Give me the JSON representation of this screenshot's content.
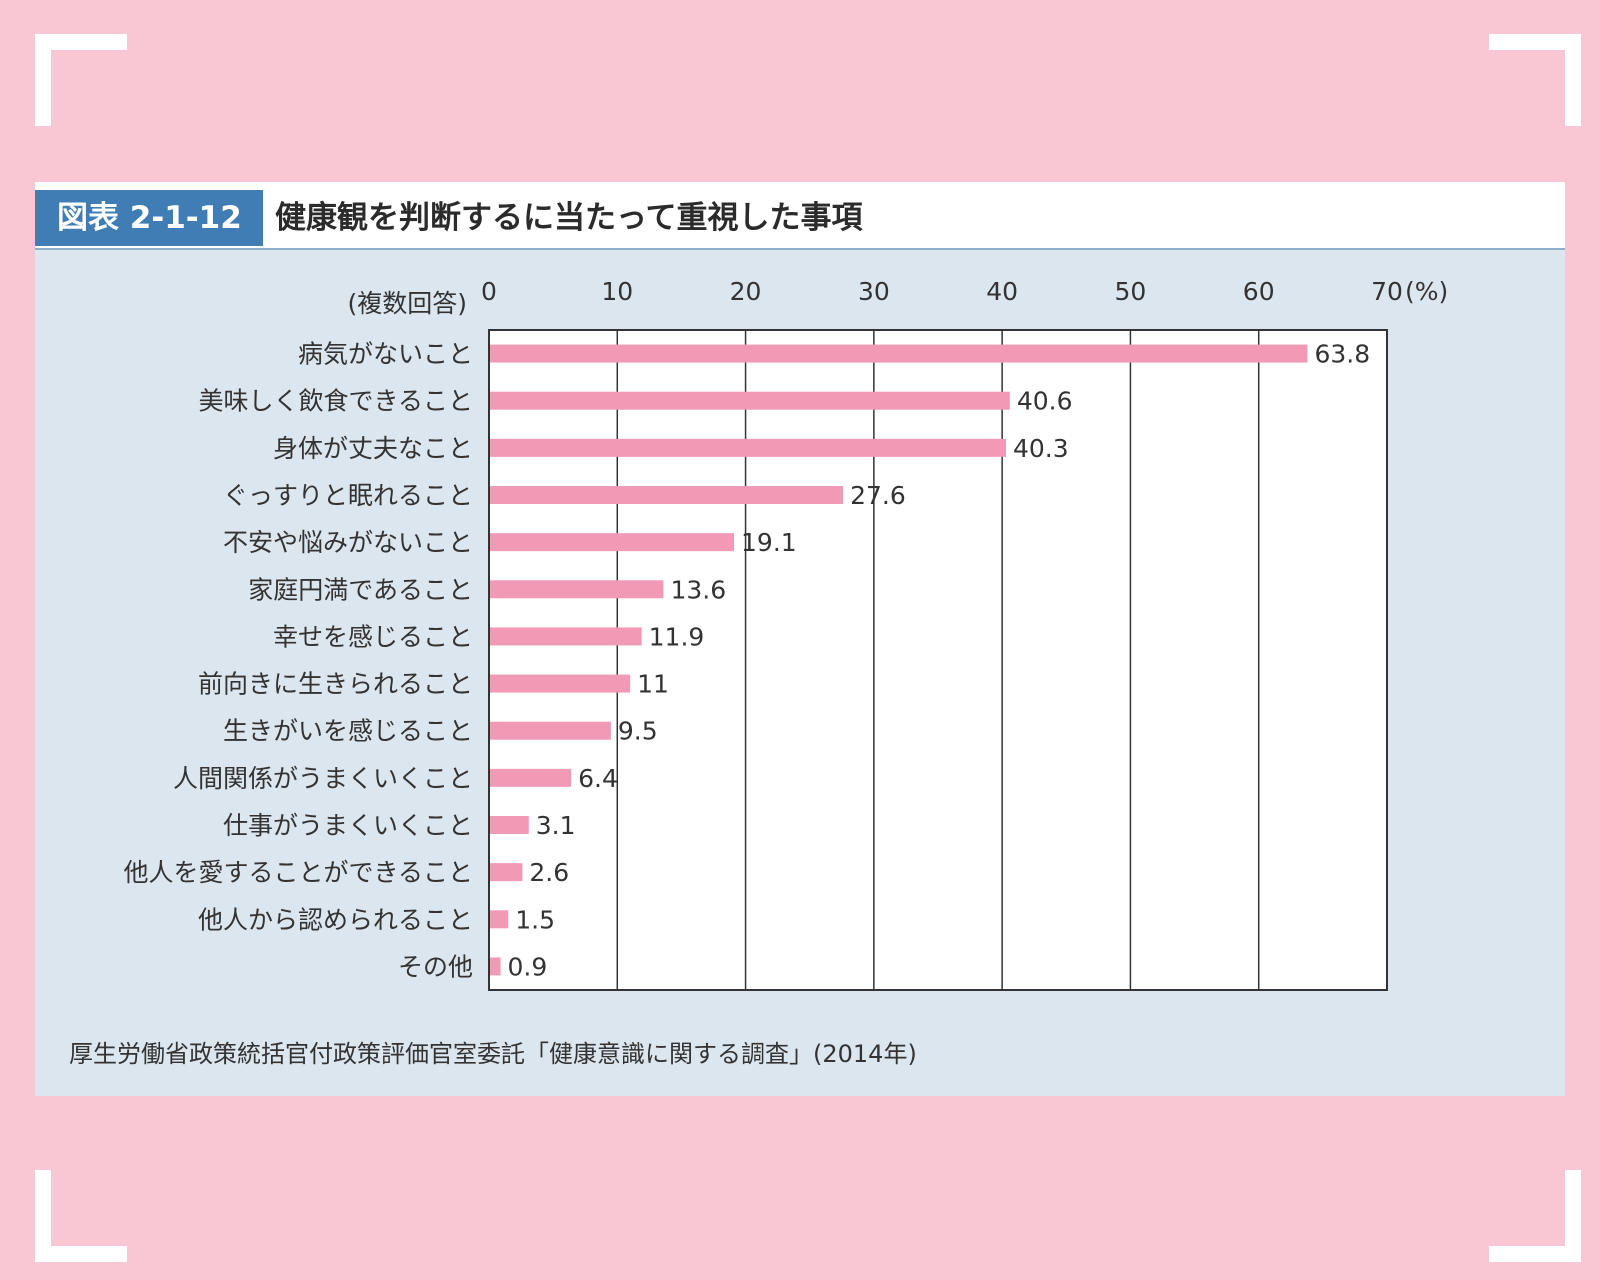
{
  "figure": {
    "number": "図表 2-1-12",
    "title": "健康観を判断するに当たって重視した事項",
    "source": "厚生労働省政策統括官付政策評価官室委託「健康意識に関する調査」(2014年)"
  },
  "chart_data": {
    "type": "bar",
    "orientation": "horizontal",
    "note": "(複数回答)",
    "unit": "(%)",
    "xlim": [
      0,
      70
    ],
    "ticks": [
      0,
      10,
      20,
      30,
      40,
      50,
      60,
      70
    ],
    "grid": true,
    "categories": [
      "病気がないこと",
      "美味しく飲食できること",
      "身体が丈夫なこと",
      "ぐっすりと眠れること",
      "不安や悩みがないこと",
      "家庭円満であること",
      "幸せを感じること",
      "前向きに生きられること",
      "生きがいを感じること",
      "人間関係がうまくいくこと",
      "仕事がうまくいくこと",
      "他人を愛することができること",
      "他人から認められること",
      "その他"
    ],
    "values": [
      63.8,
      40.6,
      40.3,
      27.6,
      19.1,
      13.6,
      11.9,
      11,
      9.5,
      6.4,
      3.1,
      2.6,
      1.5,
      0.9
    ],
    "colors": {
      "bar": "#f29ab5",
      "frame": "#333333",
      "plot_bg": "#ffffff"
    }
  }
}
